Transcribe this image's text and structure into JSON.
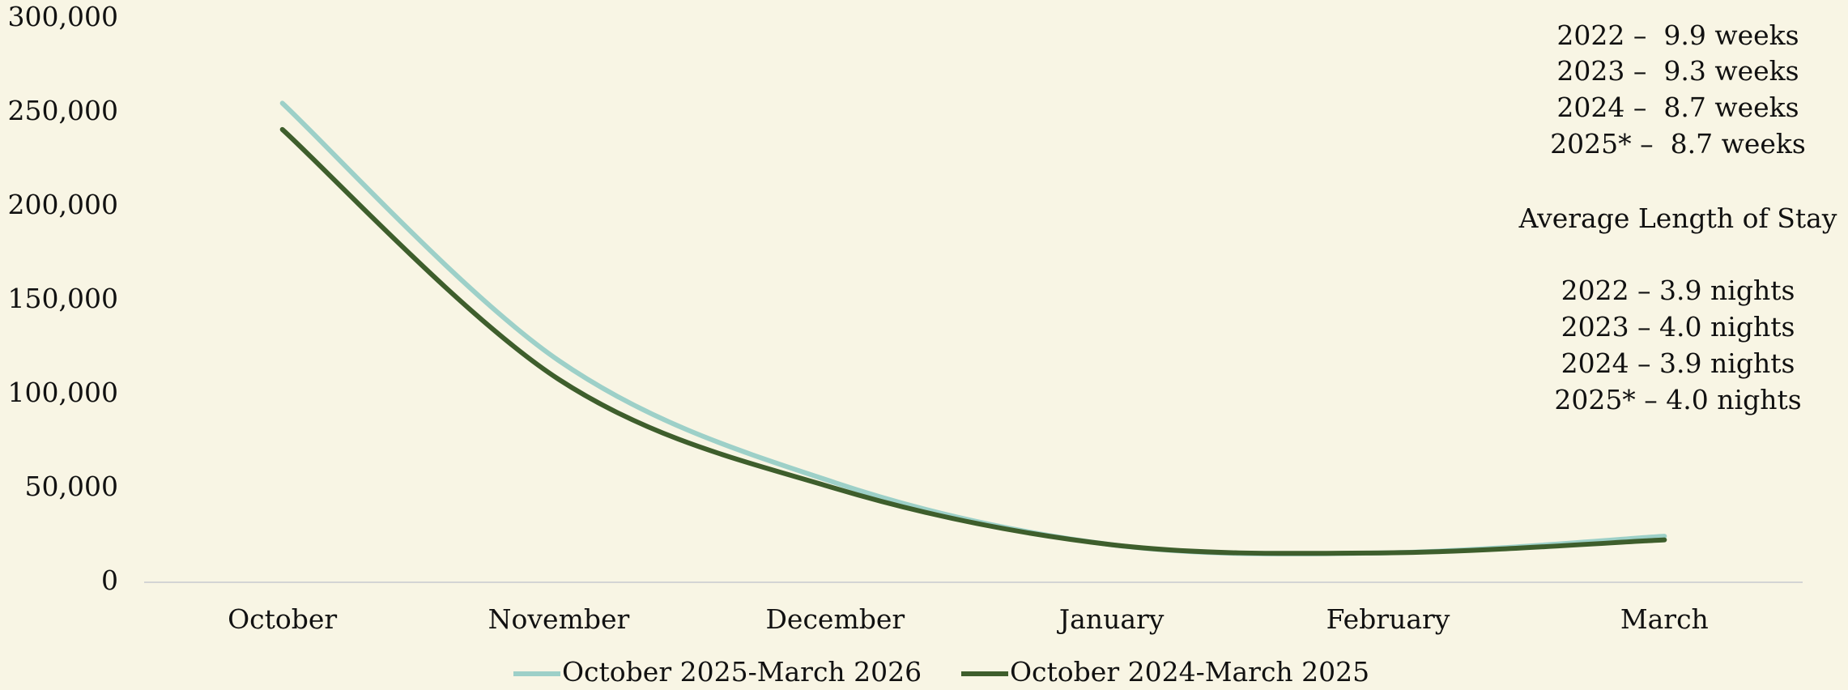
{
  "chart_data": {
    "type": "line",
    "categories": [
      "October",
      "November",
      "December",
      "January",
      "February",
      "March"
    ],
    "series": [
      {
        "name": "October 2025-March 2026",
        "color": "#9dd0c8",
        "values": [
          255000,
          118000,
          53000,
          20000,
          15700,
          24500
        ]
      },
      {
        "name": "October 2024-March 2025",
        "color": "#3e5e2c",
        "values": [
          241000,
          108000,
          50000,
          20000,
          15700,
          22600
        ]
      }
    ],
    "ylim": [
      0,
      300000
    ],
    "yticks": [
      0,
      {
        "value": 50000,
        "label": "50,000"
      },
      {
        "value": 100000,
        "label": "100,000"
      },
      {
        "value": 150000,
        "label": "150,000"
      },
      {
        "value": 200000,
        "label": "200,000"
      },
      {
        "value": 250000,
        "label": "250,000"
      },
      {
        "value": 300000,
        "label": "300,000"
      }
    ],
    "smooth": true,
    "legend": "bottom",
    "annotations": [
      "2022 –  9.9 weeks",
      "2023 –  9.3 weeks",
      "2024 –  8.7 weeks",
      "2025* –  8.7 weeks",
      "Average Length of Stay",
      "2022 – 3.9 nights",
      "2023 – 4.0 nights",
      "2024 – 3.9 nights",
      "2025* – 4.0 nights"
    ]
  }
}
